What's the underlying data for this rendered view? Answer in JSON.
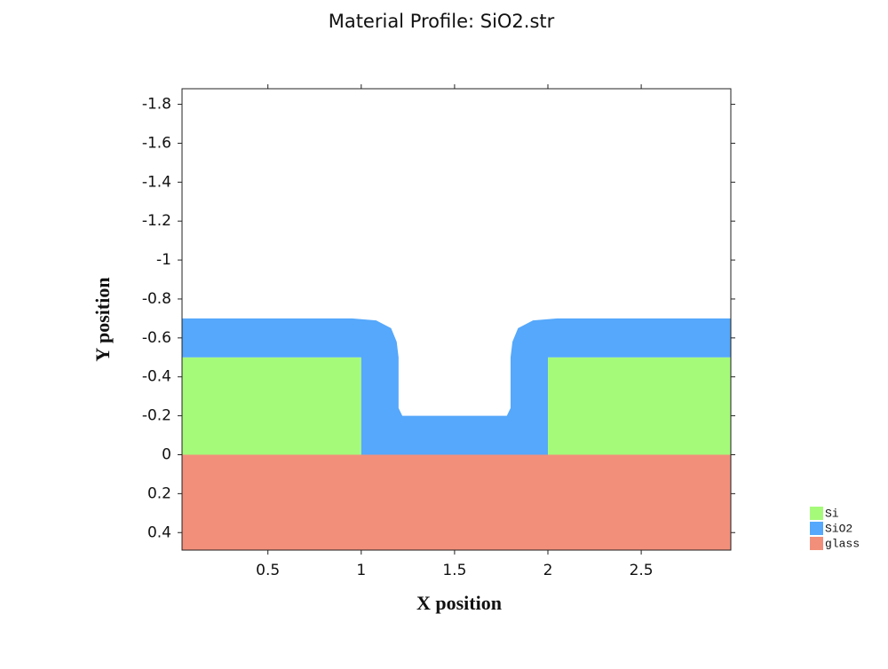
{
  "chart_data": {
    "type": "profile",
    "title": "Material Profile: SiO2.str",
    "x_label": "X position",
    "y_label": "Y position",
    "xlim": [
      0.04,
      2.98
    ],
    "xticks": [
      0.5,
      1,
      1.5,
      2,
      2.5
    ],
    "ylim": [
      -1.88,
      0.49
    ],
    "yticks": [
      -1.8,
      -1.6,
      -1.4,
      -1.2,
      -1,
      -0.8,
      -0.6,
      -0.4,
      -0.2,
      0,
      0.2,
      0.4
    ],
    "y_axis_inverted": true,
    "legend": "lower right",
    "series": [
      {
        "name": "Si",
        "color": "#a6fa7a",
        "polygons": [
          {
            "x": [
              0.04,
              1.0,
              1.0,
              0.04
            ],
            "y": [
              -0.5,
              -0.5,
              0,
              0
            ]
          },
          {
            "x": [
              2.0,
              2.98,
              2.98,
              2.0
            ],
            "y": [
              -0.5,
              -0.5,
              0,
              0
            ]
          }
        ]
      },
      {
        "name": "SiO2",
        "color": "#55a8fb",
        "polygons": [
          {
            "x": [
              0.04,
              0.95,
              1.08,
              1.16,
              1.19,
              1.2,
              1.2,
              1.22,
              1.78,
              1.8,
              1.8,
              1.81,
              1.84,
              1.92,
              2.05,
              2.98,
              2.98,
              2.0,
              2.0,
              1.0,
              1.0,
              0.04
            ],
            "y": [
              -0.7,
              -0.7,
              -0.69,
              -0.65,
              -0.58,
              -0.5,
              -0.24,
              -0.2,
              -0.2,
              -0.24,
              -0.5,
              -0.58,
              -0.65,
              -0.69,
              -0.7,
              -0.7,
              -0.5,
              -0.5,
              0,
              0,
              -0.5,
              -0.5
            ]
          }
        ]
      },
      {
        "name": "glass",
        "color": "#f28f7b",
        "polygons": [
          {
            "x": [
              0.04,
              2.98,
              2.98,
              0.04
            ],
            "y": [
              0,
              0,
              0.49,
              0.49
            ]
          }
        ]
      }
    ]
  }
}
